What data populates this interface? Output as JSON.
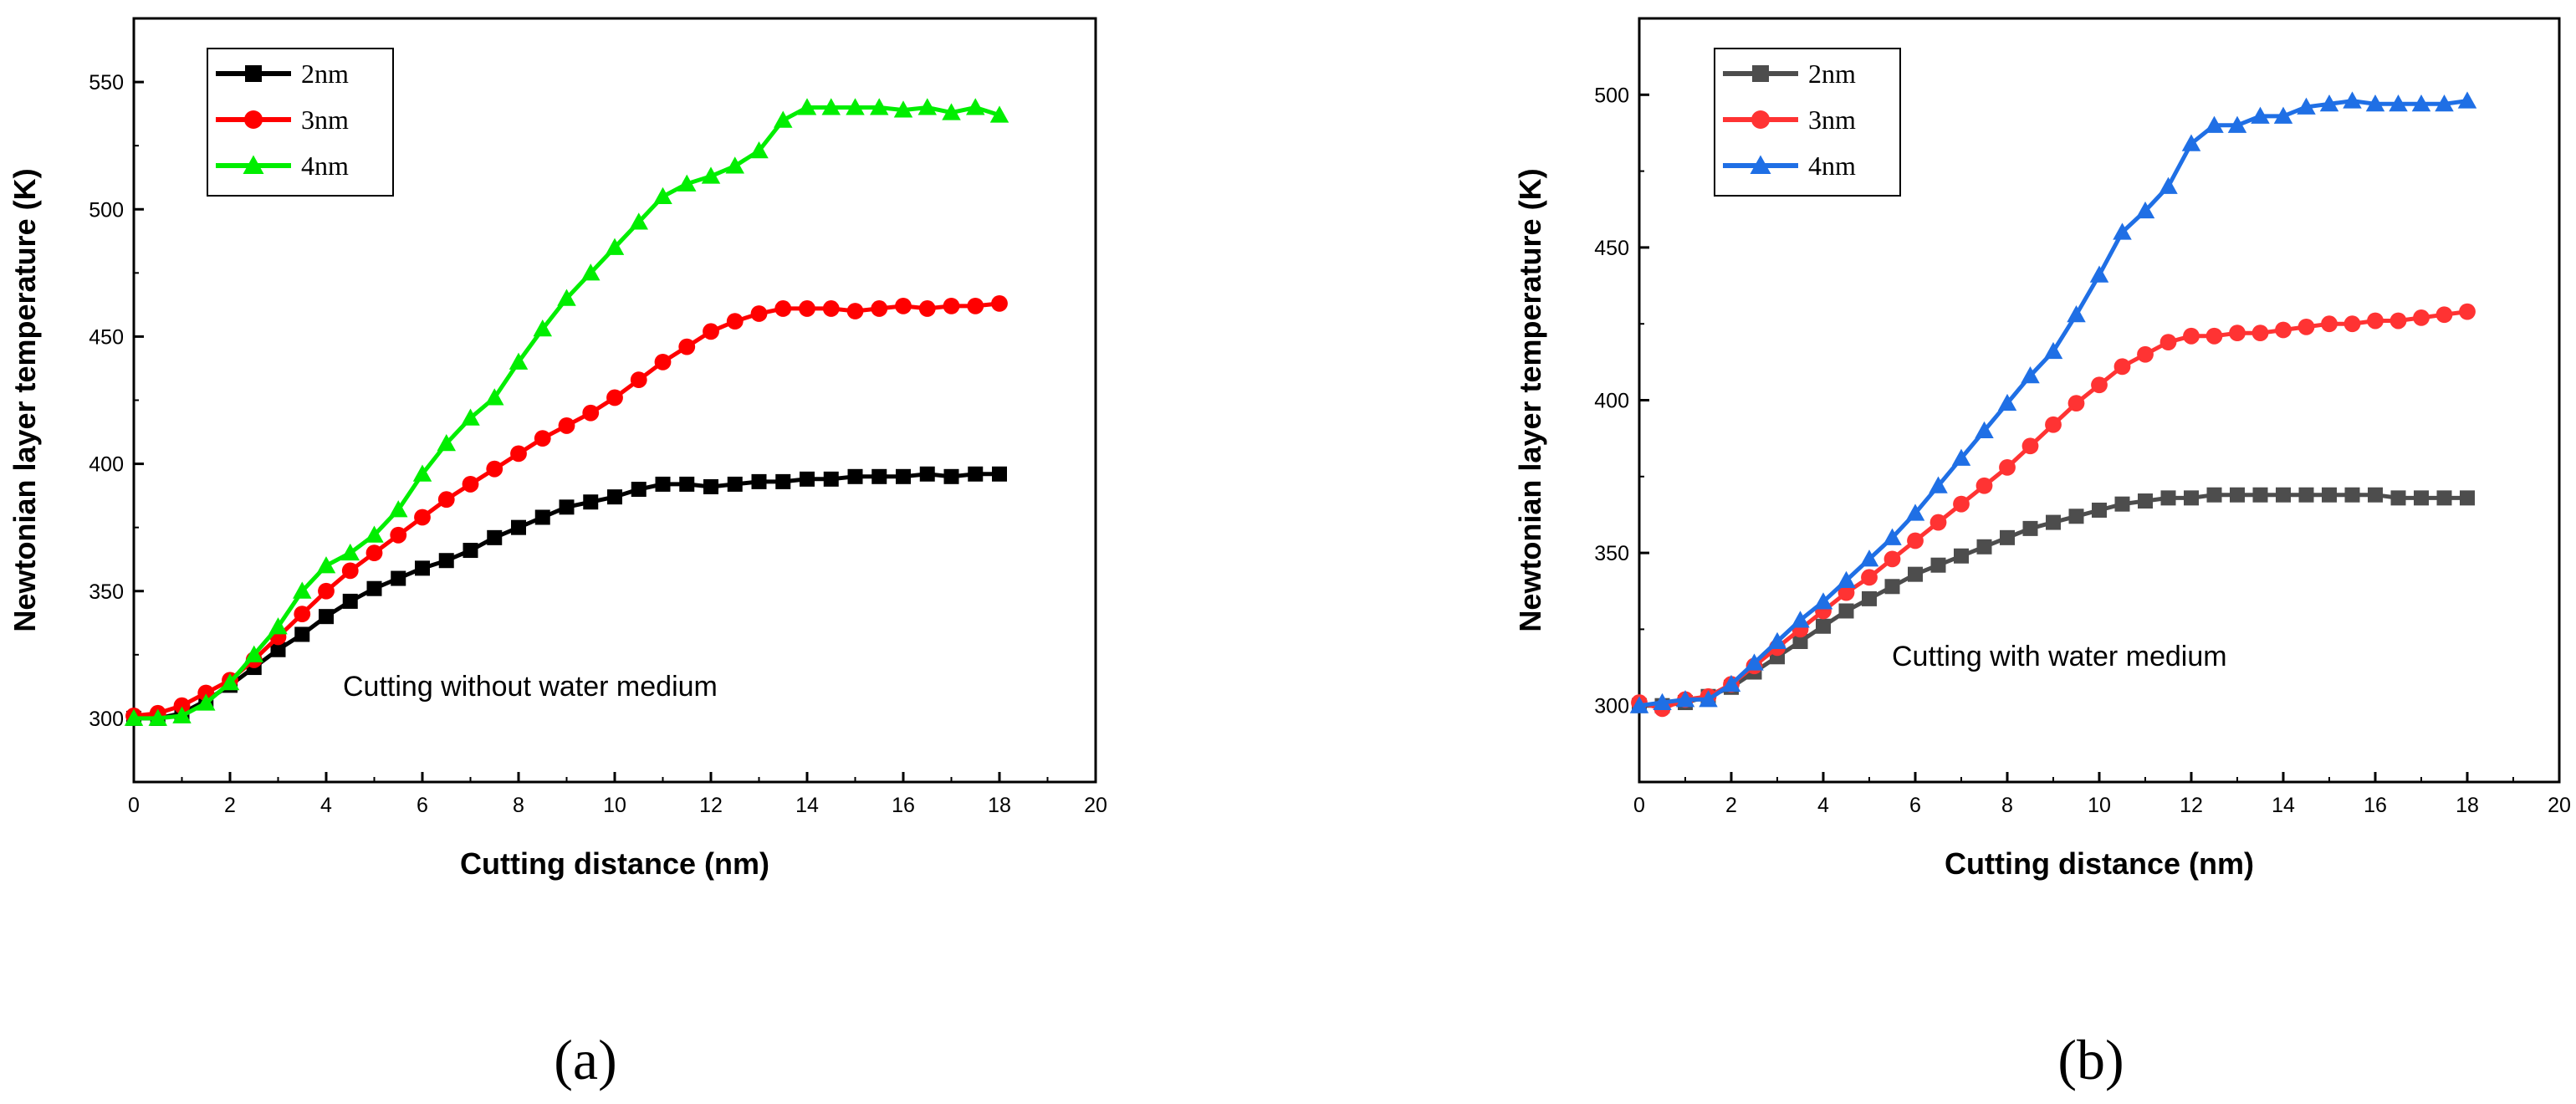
{
  "figure": {
    "captions": [
      "(a)",
      "(b)"
    ]
  },
  "chart_data": [
    {
      "type": "line",
      "panel_caption": "(a)",
      "xlabel": "Cutting distance (nm)",
      "ylabel": "Newtonian layer temperature (K)",
      "xlim": [
        0,
        20
      ],
      "ylim": [
        275,
        575
      ],
      "xticks": [
        0,
        2,
        4,
        6,
        8,
        10,
        12,
        14,
        16,
        18,
        20
      ],
      "yticks": [
        300,
        350,
        400,
        450,
        500,
        550
      ],
      "grid": false,
      "legend_position": "top-left",
      "annotation": "Cutting without water medium",
      "series": [
        {
          "name": "2nm",
          "color": "#000000",
          "marker": "square",
          "x": [
            0,
            0.5,
            1,
            1.5,
            2,
            2.5,
            3,
            3.5,
            4,
            4.5,
            5,
            5.5,
            6,
            6.5,
            7,
            7.5,
            8,
            8.5,
            9,
            9.5,
            10,
            10.5,
            11,
            11.5,
            12,
            12.5,
            13,
            13.5,
            14,
            14.5,
            15,
            15.5,
            16,
            16.5,
            17,
            17.5,
            18
          ],
          "y": [
            300,
            300,
            302,
            307,
            313,
            320,
            327,
            333,
            340,
            346,
            351,
            355,
            359,
            362,
            366,
            371,
            375,
            379,
            383,
            385,
            387,
            390,
            392,
            392,
            391,
            392,
            393,
            393,
            394,
            394,
            395,
            395,
            395,
            396,
            395,
            396,
            396
          ]
        },
        {
          "name": "3nm",
          "color": "#ff0000",
          "marker": "circle",
          "x": [
            0,
            0.5,
            1,
            1.5,
            2,
            2.5,
            3,
            3.5,
            4,
            4.5,
            5,
            5.5,
            6,
            6.5,
            7,
            7.5,
            8,
            8.5,
            9,
            9.5,
            10,
            10.5,
            11,
            11.5,
            12,
            12.5,
            13,
            13.5,
            14,
            14.5,
            15,
            15.5,
            16,
            16.5,
            17,
            17.5,
            18
          ],
          "y": [
            301,
            302,
            305,
            310,
            315,
            323,
            332,
            341,
            350,
            358,
            365,
            372,
            379,
            386,
            392,
            398,
            404,
            410,
            415,
            420,
            426,
            433,
            440,
            446,
            452,
            456,
            459,
            461,
            461,
            461,
            460,
            461,
            462,
            461,
            462,
            462,
            463
          ]
        },
        {
          "name": "4nm",
          "color": "#00ee00",
          "marker": "triangle",
          "x": [
            0,
            0.5,
            1,
            1.5,
            2,
            2.5,
            3,
            3.5,
            4,
            4.5,
            5,
            5.5,
            6,
            6.5,
            7,
            7.5,
            8,
            8.5,
            9,
            9.5,
            10,
            10.5,
            11,
            11.5,
            12,
            12.5,
            13,
            13.5,
            14,
            14.5,
            15,
            15.5,
            16,
            16.5,
            17,
            17.5,
            18
          ],
          "y": [
            300,
            300,
            301,
            306,
            314,
            325,
            336,
            350,
            360,
            365,
            372,
            382,
            396,
            408,
            418,
            426,
            440,
            453,
            465,
            475,
            485,
            495,
            505,
            510,
            513,
            517,
            523,
            535,
            540,
            540,
            540,
            540,
            539,
            540,
            538,
            540,
            537
          ]
        }
      ]
    },
    {
      "type": "line",
      "panel_caption": "(b)",
      "xlabel": "Cutting distance (nm)",
      "ylabel": "Newtonian layer temperature (K)",
      "xlim": [
        0,
        20
      ],
      "ylim": [
        275,
        525
      ],
      "xticks": [
        0,
        2,
        4,
        6,
        8,
        10,
        12,
        14,
        16,
        18,
        20
      ],
      "yticks": [
        300,
        350,
        400,
        450,
        500
      ],
      "grid": false,
      "legend_position": "top-left",
      "annotation": "Cutting with water medium",
      "series": [
        {
          "name": "2nm",
          "color": "#4d4d4d",
          "marker": "square",
          "x": [
            0,
            0.5,
            1,
            1.5,
            2,
            2.5,
            3,
            3.5,
            4,
            4.5,
            5,
            5.5,
            6,
            6.5,
            7,
            7.5,
            8,
            8.5,
            9,
            9.5,
            10,
            10.5,
            11,
            11.5,
            12,
            12.5,
            13,
            13.5,
            14,
            14.5,
            15,
            15.5,
            16,
            16.5,
            17,
            17.5,
            18
          ],
          "y": [
            300,
            300,
            301,
            303,
            306,
            311,
            316,
            321,
            326,
            331,
            335,
            339,
            343,
            346,
            349,
            352,
            355,
            358,
            360,
            362,
            364,
            366,
            367,
            368,
            368,
            369,
            369,
            369,
            369,
            369,
            369,
            369,
            369,
            368,
            368,
            368,
            368
          ]
        },
        {
          "name": "3nm",
          "color": "#ff3333",
          "marker": "circle",
          "x": [
            0,
            0.5,
            1,
            1.5,
            2,
            2.5,
            3,
            3.5,
            4,
            4.5,
            5,
            5.5,
            6,
            6.5,
            7,
            7.5,
            8,
            8.5,
            9,
            9.5,
            10,
            10.5,
            11,
            11.5,
            12,
            12.5,
            13,
            13.5,
            14,
            14.5,
            15,
            15.5,
            16,
            16.5,
            17,
            17.5,
            18
          ],
          "y": [
            301,
            299,
            302,
            303,
            307,
            313,
            319,
            325,
            331,
            337,
            342,
            348,
            354,
            360,
            366,
            372,
            378,
            385,
            392,
            399,
            405,
            411,
            415,
            419,
            421,
            421,
            422,
            422,
            423,
            424,
            425,
            425,
            426,
            426,
            427,
            428,
            429
          ]
        },
        {
          "name": "4nm",
          "color": "#1f6fe5",
          "marker": "triangle",
          "x": [
            0,
            0.5,
            1,
            1.5,
            2,
            2.5,
            3,
            3.5,
            4,
            4.5,
            5,
            5.5,
            6,
            6.5,
            7,
            7.5,
            8,
            8.5,
            9,
            9.5,
            10,
            10.5,
            11,
            11.5,
            12,
            12.5,
            13,
            13.5,
            14,
            14.5,
            15,
            15.5,
            16,
            16.5,
            17,
            17.5,
            18
          ],
          "y": [
            300,
            301,
            302,
            302,
            307,
            314,
            321,
            328,
            334,
            341,
            348,
            355,
            363,
            372,
            381,
            390,
            399,
            408,
            416,
            428,
            441,
            455,
            462,
            470,
            484,
            490,
            490,
            493,
            493,
            496,
            497,
            498,
            497,
            497,
            497,
            497,
            498
          ]
        }
      ]
    }
  ]
}
